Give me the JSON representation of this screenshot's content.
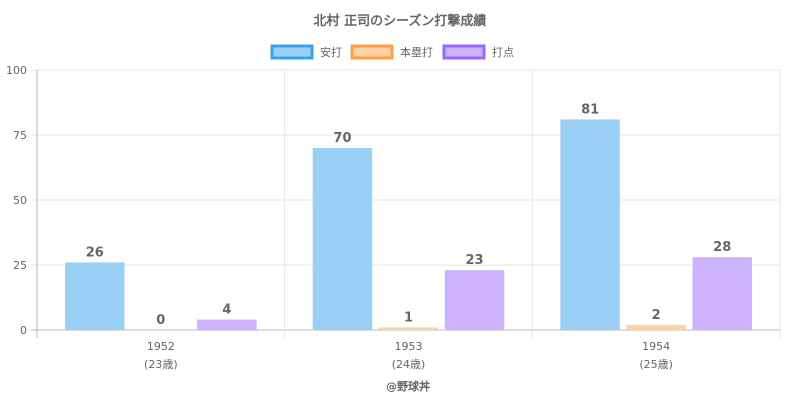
{
  "chart_data": {
    "type": "bar",
    "title": "北村 正司のシーズン打撃成績",
    "categories": [
      "1952",
      "1953",
      "1954"
    ],
    "category_sublabels": [
      "(23歳)",
      "(24歳)",
      "(25歳)"
    ],
    "series": [
      {
        "name": "安打",
        "values": [
          26,
          70,
          81
        ],
        "color": "#9ad0f5",
        "border": "#36a2eb"
      },
      {
        "name": "本塁打",
        "values": [
          0,
          1,
          2
        ],
        "color": "#ffd3a1",
        "border": "#ff9f40"
      },
      {
        "name": "打点",
        "values": [
          4,
          23,
          28
        ],
        "color": "#ccb2ff",
        "border": "#9966ff"
      }
    ],
    "ylim": [
      0,
      100
    ],
    "yticks": [
      0,
      25,
      50,
      75,
      100
    ],
    "grid": true,
    "legend": "top-center",
    "credit": "@野球丼"
  }
}
